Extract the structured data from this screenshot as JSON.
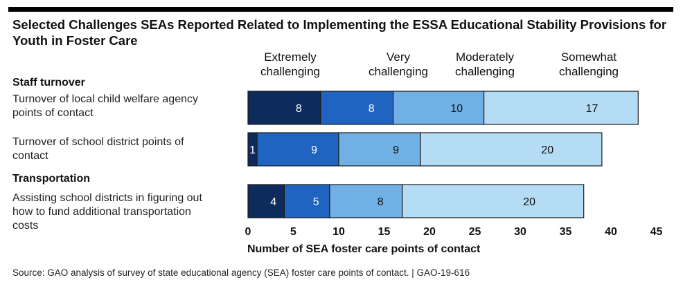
{
  "chart_data": {
    "type": "bar",
    "orientation": "horizontal",
    "stacked": true,
    "title": "Selected Challenges SEAs Reported Related to Implementing the ESSA Educational Stability Provisions for Youth in Foster Care",
    "xlabel": "Number of SEA foster care points of contact",
    "xlim": [
      0,
      45
    ],
    "xticks": [
      "0",
      "5",
      "10",
      "15",
      "20",
      "25",
      "30",
      "35",
      "40",
      "45"
    ],
    "groups": [
      {
        "header": "Staff turnover",
        "rows": [
          0,
          1
        ]
      },
      {
        "header": "Transportation",
        "rows": [
          2
        ]
      }
    ],
    "categories": [
      "Turnover of local child welfare agency points of contact",
      "Turnover of school district points of contact",
      "Assisting school districts in figuring out how to fund additional transportation costs"
    ],
    "series": [
      {
        "name": "Extremely challenging",
        "color": "#0d2c5c",
        "values": [
          8,
          1,
          4
        ]
      },
      {
        "name": "Very challenging",
        "color": "#1e64c0",
        "values": [
          8,
          9,
          5
        ]
      },
      {
        "name": "Moderately challenging",
        "color": "#70b0e4",
        "values": [
          10,
          9,
          8
        ]
      },
      {
        "name": "Somewhat challenging",
        "color": "#b4dcf4",
        "values": [
          17,
          20,
          20
        ]
      }
    ],
    "label_colors": [
      "#ffffff",
      "#ffffff",
      "#111111",
      "#111111"
    ]
  },
  "legend": {
    "extremely": [
      "Extremely",
      "challenging"
    ],
    "very": [
      "Very",
      "challenging"
    ],
    "moderately": [
      "Moderately",
      "challenging"
    ],
    "somewhat": [
      "Somewhat",
      "challenging"
    ]
  },
  "labels": {
    "row0": [
      "Turnover of local child welfare agency",
      "points of contact"
    ],
    "row1": [
      "Turnover of school district points of",
      "contact"
    ],
    "row2": [
      "Assisting school districts in figuring out",
      "how to fund additional transportation",
      "costs"
    ]
  },
  "source": "Source: GAO analysis of survey of state educational agency (SEA) foster care points of contact.  |  GAO-19-616"
}
